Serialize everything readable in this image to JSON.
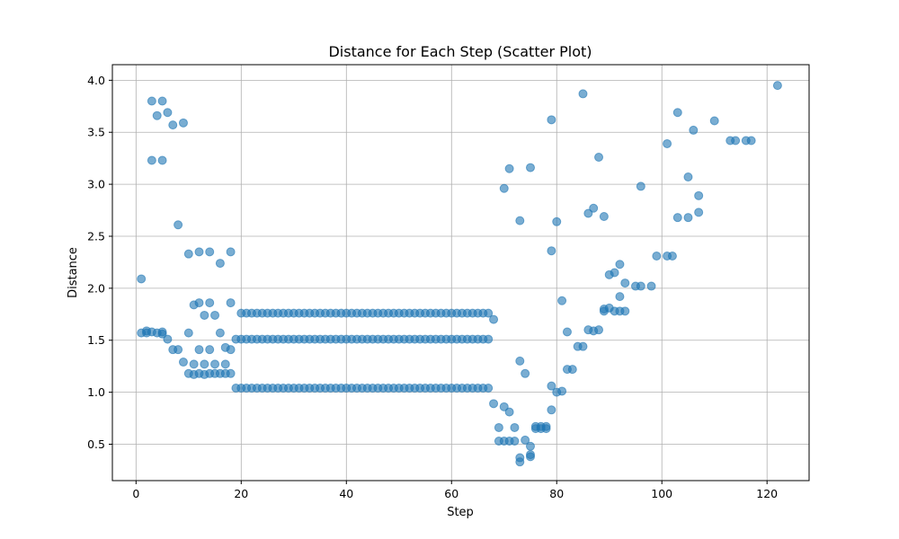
{
  "chart_data": {
    "type": "scatter",
    "title": "Distance for Each Step (Scatter Plot)",
    "xlabel": "Step",
    "ylabel": "Distance",
    "xlim": [
      -4.5,
      128
    ],
    "ylim": [
      0.15,
      4.15
    ],
    "xticks": [
      0,
      20,
      40,
      60,
      80,
      100,
      120
    ],
    "yticks": [
      0.5,
      1.0,
      1.5,
      2.0,
      2.5,
      3.0,
      3.5,
      4.0
    ],
    "ytick_labels": [
      "0.5",
      "1.0",
      "1.5",
      "2.0",
      "2.5",
      "3.0",
      "3.5",
      "4.0"
    ],
    "grid": true,
    "legend": "none",
    "color": "#1f77b4",
    "alpha": 0.6,
    "series": [
      {
        "points": [
          [
            1,
            2.09
          ],
          [
            1,
            1.57
          ],
          [
            2,
            1.59
          ],
          [
            2,
            1.57
          ],
          [
            3,
            1.58
          ],
          [
            3,
            3.8
          ],
          [
            3,
            3.23
          ],
          [
            4,
            3.66
          ],
          [
            4,
            1.57
          ],
          [
            5,
            3.8
          ],
          [
            5,
            3.23
          ],
          [
            5,
            1.58
          ],
          [
            5,
            1.56
          ],
          [
            6,
            3.69
          ],
          [
            6,
            1.51
          ],
          [
            7,
            3.57
          ],
          [
            7,
            1.41
          ],
          [
            8,
            2.61
          ],
          [
            8,
            1.41
          ],
          [
            9,
            3.59
          ],
          [
            9,
            1.29
          ],
          [
            10,
            2.33
          ],
          [
            10,
            1.57
          ],
          [
            10,
            1.18
          ],
          [
            11,
            1.84
          ],
          [
            11,
            1.27
          ],
          [
            11,
            1.17
          ],
          [
            12,
            2.35
          ],
          [
            12,
            1.86
          ],
          [
            12,
            1.41
          ],
          [
            12,
            1.18
          ],
          [
            13,
            1.74
          ],
          [
            13,
            1.27
          ],
          [
            13,
            1.17
          ],
          [
            14,
            2.35
          ],
          [
            14,
            1.86
          ],
          [
            14,
            1.41
          ],
          [
            14,
            1.18
          ],
          [
            15,
            1.74
          ],
          [
            15,
            1.27
          ],
          [
            15,
            1.18
          ],
          [
            16,
            2.24
          ],
          [
            16,
            1.57
          ],
          [
            16,
            1.18
          ],
          [
            17,
            1.43
          ],
          [
            17,
            1.27
          ],
          [
            17,
            1.18
          ],
          [
            18,
            2.35
          ],
          [
            18,
            1.86
          ],
          [
            18,
            1.41
          ],
          [
            18,
            1.18
          ],
          [
            19,
            1.51
          ],
          [
            19,
            1.04
          ],
          [
            20,
            1.76
          ],
          [
            20,
            1.51
          ],
          [
            20,
            1.04
          ],
          [
            21,
            1.76
          ],
          [
            21,
            1.51
          ],
          [
            21,
            1.04
          ],
          [
            22,
            1.76
          ],
          [
            22,
            1.51
          ],
          [
            22,
            1.04
          ],
          [
            23,
            1.76
          ],
          [
            23,
            1.51
          ],
          [
            23,
            1.04
          ],
          [
            24,
            1.76
          ],
          [
            24,
            1.51
          ],
          [
            24,
            1.04
          ],
          [
            25,
            1.76
          ],
          [
            25,
            1.51
          ],
          [
            25,
            1.04
          ],
          [
            26,
            1.76
          ],
          [
            26,
            1.51
          ],
          [
            26,
            1.04
          ],
          [
            27,
            1.76
          ],
          [
            27,
            1.51
          ],
          [
            27,
            1.04
          ],
          [
            28,
            1.76
          ],
          [
            28,
            1.51
          ],
          [
            28,
            1.04
          ],
          [
            29,
            1.76
          ],
          [
            29,
            1.51
          ],
          [
            29,
            1.04
          ],
          [
            30,
            1.76
          ],
          [
            30,
            1.51
          ],
          [
            30,
            1.04
          ],
          [
            31,
            1.76
          ],
          [
            31,
            1.51
          ],
          [
            31,
            1.04
          ],
          [
            32,
            1.76
          ],
          [
            32,
            1.51
          ],
          [
            32,
            1.04
          ],
          [
            33,
            1.76
          ],
          [
            33,
            1.51
          ],
          [
            33,
            1.04
          ],
          [
            34,
            1.76
          ],
          [
            34,
            1.51
          ],
          [
            34,
            1.04
          ],
          [
            35,
            1.76
          ],
          [
            35,
            1.51
          ],
          [
            35,
            1.04
          ],
          [
            36,
            1.76
          ],
          [
            36,
            1.51
          ],
          [
            36,
            1.04
          ],
          [
            37,
            1.76
          ],
          [
            37,
            1.51
          ],
          [
            37,
            1.04
          ],
          [
            38,
            1.76
          ],
          [
            38,
            1.51
          ],
          [
            38,
            1.04
          ],
          [
            39,
            1.76
          ],
          [
            39,
            1.51
          ],
          [
            39,
            1.04
          ],
          [
            40,
            1.76
          ],
          [
            40,
            1.51
          ],
          [
            40,
            1.04
          ],
          [
            41,
            1.76
          ],
          [
            41,
            1.51
          ],
          [
            41,
            1.04
          ],
          [
            42,
            1.76
          ],
          [
            42,
            1.51
          ],
          [
            42,
            1.04
          ],
          [
            43,
            1.76
          ],
          [
            43,
            1.51
          ],
          [
            43,
            1.04
          ],
          [
            44,
            1.76
          ],
          [
            44,
            1.51
          ],
          [
            44,
            1.04
          ],
          [
            45,
            1.76
          ],
          [
            45,
            1.51
          ],
          [
            45,
            1.04
          ],
          [
            46,
            1.76
          ],
          [
            46,
            1.51
          ],
          [
            46,
            1.04
          ],
          [
            47,
            1.76
          ],
          [
            47,
            1.51
          ],
          [
            47,
            1.04
          ],
          [
            48,
            1.76
          ],
          [
            48,
            1.51
          ],
          [
            48,
            1.04
          ],
          [
            49,
            1.76
          ],
          [
            49,
            1.51
          ],
          [
            49,
            1.04
          ],
          [
            50,
            1.76
          ],
          [
            50,
            1.51
          ],
          [
            50,
            1.04
          ],
          [
            51,
            1.76
          ],
          [
            51,
            1.51
          ],
          [
            51,
            1.04
          ],
          [
            52,
            1.76
          ],
          [
            52,
            1.51
          ],
          [
            52,
            1.04
          ],
          [
            53,
            1.76
          ],
          [
            53,
            1.51
          ],
          [
            53,
            1.04
          ],
          [
            54,
            1.76
          ],
          [
            54,
            1.51
          ],
          [
            54,
            1.04
          ],
          [
            55,
            1.76
          ],
          [
            55,
            1.51
          ],
          [
            55,
            1.04
          ],
          [
            56,
            1.76
          ],
          [
            56,
            1.51
          ],
          [
            56,
            1.04
          ],
          [
            57,
            1.76
          ],
          [
            57,
            1.51
          ],
          [
            57,
            1.04
          ],
          [
            58,
            1.76
          ],
          [
            58,
            1.51
          ],
          [
            58,
            1.04
          ],
          [
            59,
            1.76
          ],
          [
            59,
            1.51
          ],
          [
            59,
            1.04
          ],
          [
            60,
            1.76
          ],
          [
            60,
            1.51
          ],
          [
            60,
            1.04
          ],
          [
            61,
            1.76
          ],
          [
            61,
            1.51
          ],
          [
            61,
            1.04
          ],
          [
            62,
            1.76
          ],
          [
            62,
            1.51
          ],
          [
            62,
            1.04
          ],
          [
            63,
            1.76
          ],
          [
            63,
            1.51
          ],
          [
            63,
            1.04
          ],
          [
            64,
            1.76
          ],
          [
            64,
            1.51
          ],
          [
            64,
            1.04
          ],
          [
            65,
            1.76
          ],
          [
            65,
            1.51
          ],
          [
            65,
            1.04
          ],
          [
            66,
            1.76
          ],
          [
            66,
            1.51
          ],
          [
            66,
            1.04
          ],
          [
            67,
            1.76
          ],
          [
            67,
            1.51
          ],
          [
            67,
            1.04
          ],
          [
            68,
            1.7
          ],
          [
            68,
            0.89
          ],
          [
            69,
            0.66
          ],
          [
            69,
            0.53
          ],
          [
            70,
            2.96
          ],
          [
            70,
            0.86
          ],
          [
            70,
            0.53
          ],
          [
            71,
            3.15
          ],
          [
            71,
            0.81
          ],
          [
            71,
            0.53
          ],
          [
            72,
            0.66
          ],
          [
            72,
            0.53
          ],
          [
            73,
            2.65
          ],
          [
            73,
            1.3
          ],
          [
            73,
            0.37
          ],
          [
            73,
            0.33
          ],
          [
            74,
            1.18
          ],
          [
            74,
            0.54
          ],
          [
            75,
            3.16
          ],
          [
            75,
            0.48
          ],
          [
            75,
            0.4
          ],
          [
            75,
            0.38
          ],
          [
            76,
            0.67
          ],
          [
            76,
            0.65
          ],
          [
            77,
            0.67
          ],
          [
            77,
            0.65
          ],
          [
            78,
            0.67
          ],
          [
            78,
            0.65
          ],
          [
            79,
            3.62
          ],
          [
            79,
            2.36
          ],
          [
            79,
            1.06
          ],
          [
            79,
            0.83
          ],
          [
            80,
            2.64
          ],
          [
            80,
            1.0
          ],
          [
            81,
            1.88
          ],
          [
            81,
            1.01
          ],
          [
            82,
            1.58
          ],
          [
            82,
            1.22
          ],
          [
            83,
            1.22
          ],
          [
            84,
            1.44
          ],
          [
            85,
            3.87
          ],
          [
            85,
            1.44
          ],
          [
            86,
            2.72
          ],
          [
            86,
            1.6
          ],
          [
            87,
            2.77
          ],
          [
            87,
            1.59
          ],
          [
            88,
            3.26
          ],
          [
            88,
            1.6
          ],
          [
            89,
            2.69
          ],
          [
            89,
            1.8
          ],
          [
            89,
            1.78
          ],
          [
            90,
            2.13
          ],
          [
            90,
            1.81
          ],
          [
            91,
            2.15
          ],
          [
            91,
            1.78
          ],
          [
            92,
            2.23
          ],
          [
            92,
            1.92
          ],
          [
            92,
            1.78
          ],
          [
            93,
            2.05
          ],
          [
            93,
            1.78
          ],
          [
            95,
            2.02
          ],
          [
            96,
            2.98
          ],
          [
            96,
            2.02
          ],
          [
            98,
            2.02
          ],
          [
            99,
            2.31
          ],
          [
            101,
            3.39
          ],
          [
            101,
            2.31
          ],
          [
            102,
            2.31
          ],
          [
            103,
            3.69
          ],
          [
            103,
            2.68
          ],
          [
            105,
            3.07
          ],
          [
            105,
            2.68
          ],
          [
            106,
            3.52
          ],
          [
            107,
            2.89
          ],
          [
            107,
            2.73
          ],
          [
            110,
            3.61
          ],
          [
            113,
            3.42
          ],
          [
            114,
            3.42
          ],
          [
            116,
            3.42
          ],
          [
            117,
            3.42
          ],
          [
            122,
            3.95
          ]
        ]
      }
    ]
  }
}
